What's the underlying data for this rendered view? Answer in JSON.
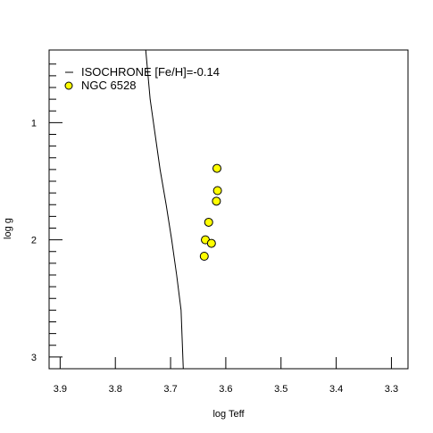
{
  "chart_data": {
    "type": "scatter",
    "title": "",
    "xlabel": "log Teff",
    "ylabel": "log g",
    "xlim": [
      3.92,
      3.27
    ],
    "ylim": [
      3.1,
      0.38
    ],
    "x_ticks": [
      3.9,
      3.8,
      3.7,
      3.6,
      3.5,
      3.4,
      3.3
    ],
    "x_tick_labels": [
      "3.9",
      "3.8",
      "3.7",
      "3.6",
      "3.5",
      "3.4",
      "3.3"
    ],
    "y_major_ticks": [
      1,
      2,
      3
    ],
    "y_tick_labels": [
      "1",
      "2",
      "3"
    ],
    "y_minor_ticks": [
      0.5,
      0.6,
      0.7,
      0.8,
      0.9,
      1.1,
      1.2,
      1.3,
      1.4,
      1.5,
      1.6,
      1.7,
      1.8,
      1.9,
      2.1,
      2.2,
      2.3,
      2.4,
      2.5,
      2.6,
      2.7,
      2.8,
      2.9
    ],
    "legend_position": "top-left",
    "series": [
      {
        "name": "ISOCHRONE [Fe/H]=-0.14",
        "kind": "line",
        "color": "#000000",
        "x": [
          3.677,
          3.681,
          3.689,
          3.698,
          3.708,
          3.719,
          3.728,
          3.737,
          3.745
        ],
        "y": [
          3.1,
          2.6,
          2.3,
          2.0,
          1.7,
          1.4,
          1.1,
          0.8,
          0.38
        ]
      },
      {
        "name": "NGC 6528",
        "kind": "scatter",
        "color": "#ffff00",
        "edge_color": "#000000",
        "x": [
          3.616,
          3.615,
          3.617,
          3.631,
          3.637,
          3.626,
          3.639
        ],
        "y": [
          1.39,
          1.58,
          1.67,
          1.85,
          2.0,
          2.03,
          2.14
        ]
      }
    ]
  }
}
